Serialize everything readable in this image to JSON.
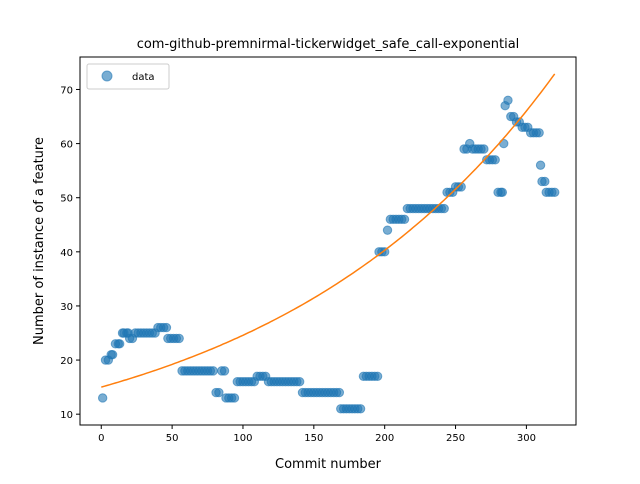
{
  "chart_data": {
    "type": "scatter",
    "title": "com-github-premnirmal-tickerwidget_safe_call-exponential",
    "xlabel": "Commit number",
    "ylabel": "Number of instance of a feature",
    "xlim": [
      -15,
      335
    ],
    "ylim": [
      8,
      76
    ],
    "xticks": [
      0,
      50,
      100,
      150,
      200,
      250,
      300
    ],
    "yticks": [
      10,
      20,
      30,
      40,
      50,
      60,
      70
    ],
    "legend": {
      "placement": "top-left",
      "entries": [
        "data"
      ]
    },
    "colors": {
      "data": "#1f77b4",
      "fit": "#ff7f0e"
    },
    "series": [
      {
        "name": "data",
        "kind": "scatter",
        "points": [
          [
            1,
            13
          ],
          [
            3,
            20
          ],
          [
            5,
            20
          ],
          [
            7,
            21
          ],
          [
            8,
            21
          ],
          [
            10,
            23
          ],
          [
            12,
            23
          ],
          [
            13,
            23
          ],
          [
            15,
            25
          ],
          [
            16,
            25
          ],
          [
            18,
            25
          ],
          [
            19,
            25
          ],
          [
            20,
            24
          ],
          [
            22,
            24
          ],
          [
            24,
            25
          ],
          [
            26,
            25
          ],
          [
            28,
            25
          ],
          [
            30,
            25
          ],
          [
            32,
            25
          ],
          [
            34,
            25
          ],
          [
            36,
            25
          ],
          [
            38,
            25
          ],
          [
            40,
            26
          ],
          [
            42,
            26
          ],
          [
            44,
            26
          ],
          [
            46,
            26
          ],
          [
            47,
            24
          ],
          [
            49,
            24
          ],
          [
            51,
            24
          ],
          [
            53,
            24
          ],
          [
            55,
            24
          ],
          [
            57,
            18
          ],
          [
            59,
            18
          ],
          [
            61,
            18
          ],
          [
            63,
            18
          ],
          [
            65,
            18
          ],
          [
            67,
            18
          ],
          [
            69,
            18
          ],
          [
            71,
            18
          ],
          [
            73,
            18
          ],
          [
            75,
            18
          ],
          [
            77,
            18
          ],
          [
            79,
            18
          ],
          [
            81,
            14
          ],
          [
            83,
            14
          ],
          [
            85,
            18
          ],
          [
            87,
            18
          ],
          [
            88,
            13
          ],
          [
            90,
            13
          ],
          [
            92,
            13
          ],
          [
            94,
            13
          ],
          [
            96,
            16
          ],
          [
            98,
            16
          ],
          [
            100,
            16
          ],
          [
            102,
            16
          ],
          [
            104,
            16
          ],
          [
            106,
            16
          ],
          [
            108,
            16
          ],
          [
            110,
            17
          ],
          [
            112,
            17
          ],
          [
            114,
            17
          ],
          [
            116,
            17
          ],
          [
            118,
            16
          ],
          [
            120,
            16
          ],
          [
            122,
            16
          ],
          [
            124,
            16
          ],
          [
            126,
            16
          ],
          [
            128,
            16
          ],
          [
            130,
            16
          ],
          [
            132,
            16
          ],
          [
            134,
            16
          ],
          [
            136,
            16
          ],
          [
            138,
            16
          ],
          [
            140,
            16
          ],
          [
            142,
            14
          ],
          [
            144,
            14
          ],
          [
            146,
            14
          ],
          [
            148,
            14
          ],
          [
            150,
            14
          ],
          [
            152,
            14
          ],
          [
            154,
            14
          ],
          [
            156,
            14
          ],
          [
            158,
            14
          ],
          [
            160,
            14
          ],
          [
            162,
            14
          ],
          [
            164,
            14
          ],
          [
            166,
            14
          ],
          [
            168,
            14
          ],
          [
            169,
            11
          ],
          [
            171,
            11
          ],
          [
            173,
            11
          ],
          [
            175,
            11
          ],
          [
            177,
            11
          ],
          [
            179,
            11
          ],
          [
            181,
            11
          ],
          [
            183,
            11
          ],
          [
            185,
            17
          ],
          [
            187,
            17
          ],
          [
            189,
            17
          ],
          [
            191,
            17
          ],
          [
            193,
            17
          ],
          [
            195,
            17
          ],
          [
            196,
            40
          ],
          [
            198,
            40
          ],
          [
            200,
            40
          ],
          [
            202,
            44
          ],
          [
            204,
            46
          ],
          [
            206,
            46
          ],
          [
            208,
            46
          ],
          [
            210,
            46
          ],
          [
            212,
            46
          ],
          [
            214,
            46
          ],
          [
            216,
            48
          ],
          [
            218,
            48
          ],
          [
            220,
            48
          ],
          [
            222,
            48
          ],
          [
            224,
            48
          ],
          [
            226,
            48
          ],
          [
            228,
            48
          ],
          [
            230,
            48
          ],
          [
            232,
            48
          ],
          [
            234,
            48
          ],
          [
            236,
            48
          ],
          [
            238,
            48
          ],
          [
            240,
            48
          ],
          [
            242,
            48
          ],
          [
            244,
            51
          ],
          [
            246,
            51
          ],
          [
            248,
            51
          ],
          [
            250,
            52
          ],
          [
            252,
            52
          ],
          [
            254,
            52
          ],
          [
            256,
            59
          ],
          [
            258,
            59
          ],
          [
            260,
            60
          ],
          [
            262,
            59
          ],
          [
            264,
            59
          ],
          [
            266,
            59
          ],
          [
            268,
            59
          ],
          [
            270,
            59
          ],
          [
            272,
            57
          ],
          [
            274,
            57
          ],
          [
            276,
            57
          ],
          [
            278,
            57
          ],
          [
            280,
            51
          ],
          [
            282,
            51
          ],
          [
            283,
            51
          ],
          [
            284,
            60
          ],
          [
            285,
            67
          ],
          [
            287,
            68
          ],
          [
            289,
            65
          ],
          [
            291,
            65
          ],
          [
            293,
            64
          ],
          [
            295,
            64
          ],
          [
            297,
            63
          ],
          [
            299,
            63
          ],
          [
            301,
            63
          ],
          [
            303,
            62
          ],
          [
            305,
            62
          ],
          [
            307,
            62
          ],
          [
            309,
            62
          ],
          [
            310,
            56
          ],
          [
            311,
            53
          ],
          [
            313,
            53
          ],
          [
            314,
            51
          ],
          [
            316,
            51
          ],
          [
            318,
            51
          ],
          [
            320,
            51
          ]
        ]
      },
      {
        "name": "fit",
        "kind": "line",
        "equation": {
          "a": 15.0,
          "b": 0.00494
        },
        "xrange": [
          0,
          320
        ]
      }
    ]
  }
}
